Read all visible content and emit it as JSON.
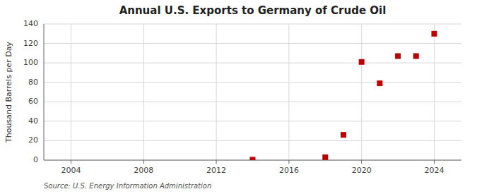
{
  "chart_data": {
    "type": "scatter",
    "title": "Annual U.S. Exports to Germany of Crude Oil",
    "y_label": "Thousand Barrels per Day",
    "source": "Source: U.S. Energy Information Administration",
    "x": [
      2014,
      2018,
      2019,
      2020,
      2021,
      2022,
      2023,
      2024
    ],
    "values": [
      0.5,
      3.0,
      26.0,
      101.0,
      79.0,
      107.0,
      107.0,
      130.0
    ],
    "color": "#bb0000",
    "marker": "square",
    "xlim": [
      2002.5,
      2025.5
    ],
    "ylim": [
      0,
      140
    ],
    "xticks": [
      2004,
      2008,
      2012,
      2016,
      2020,
      2024
    ],
    "yticks": [
      0,
      20,
      40,
      60,
      80,
      100,
      120,
      140
    ],
    "grid": true
  }
}
